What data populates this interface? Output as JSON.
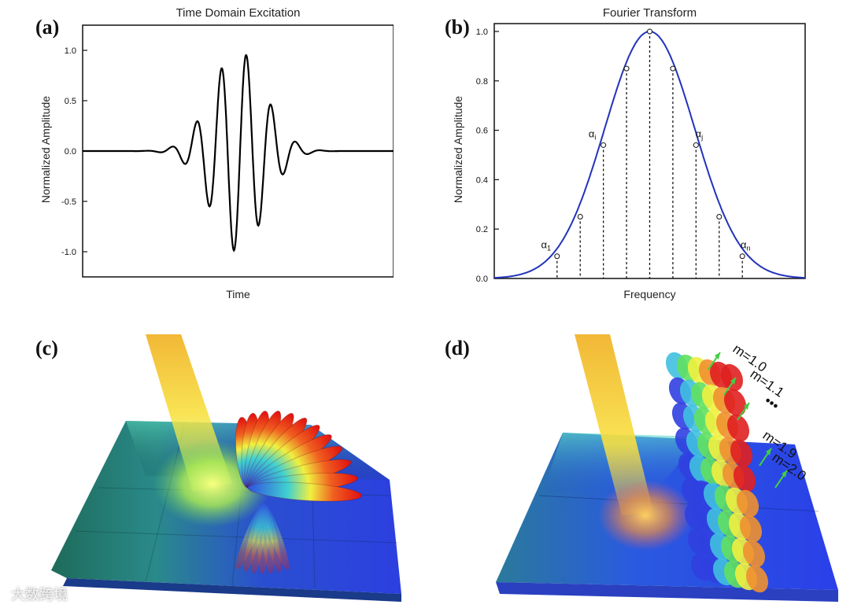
{
  "panels": {
    "a": {
      "letter": "(a)"
    },
    "b": {
      "letter": "(b)"
    },
    "c": {
      "letter": "(c)"
    },
    "d": {
      "letter": "(d)",
      "mode_labels": [
        "m=1.0",
        "m=1.1",
        "•••",
        "m=1.9",
        "m=2.0"
      ]
    }
  },
  "watermark": "大数跨境",
  "chart_data": [
    {
      "type": "line",
      "title": "Time Domain Excitation",
      "xlabel": "Time",
      "ylabel": "Normalized Amplitude",
      "yticks": [
        "1.0",
        "0.5",
        "0.0",
        "-0.5",
        "-1.0"
      ],
      "ylim": [
        -1.25,
        1.25
      ],
      "xlim": [
        0,
        1
      ],
      "grid": false,
      "series": [
        {
          "signal": "gaussian-modulated sine burst",
          "carrier_cycles_visible": 6,
          "peak_positive": 0.95,
          "peak_negative": -1.0,
          "color": "#000000"
        }
      ]
    },
    {
      "type": "line",
      "title": "Fourier Transform",
      "xlabel": "Frequency",
      "ylabel": "Normalized Amplitude",
      "yticks": [
        "1.0",
        "0.8",
        "0.6",
        "0.4",
        "0.2",
        "0.0"
      ],
      "ylim": [
        0,
        1.0
      ],
      "xlim": [
        0,
        1
      ],
      "grid": false,
      "series": [
        {
          "shape": "gaussian",
          "center": 0.5,
          "peak": 1.0,
          "color": "#2233bb"
        }
      ],
      "sample_points": {
        "values": [
          0.09,
          0.25,
          0.54,
          0.85,
          1.0,
          0.85,
          0.54,
          0.25,
          0.09
        ],
        "labels": [
          {
            "base": "α",
            "sub": "1",
            "index": 0
          },
          {
            "base": "α",
            "sub": "i",
            "index": 2
          },
          {
            "base": "α",
            "sub": "j",
            "index": 6
          },
          {
            "base": "α",
            "sub": "n",
            "index": 8
          }
        ]
      }
    }
  ]
}
